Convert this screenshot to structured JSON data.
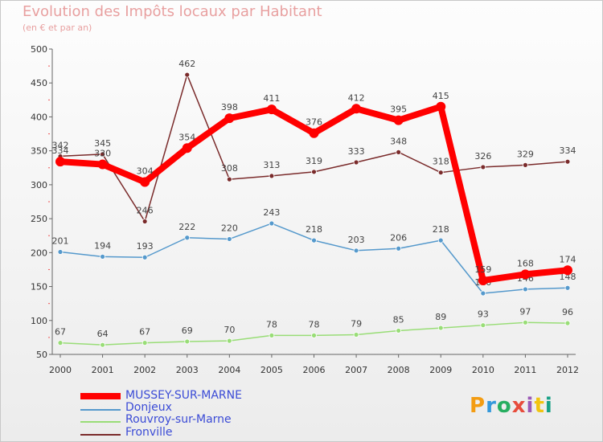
{
  "title": "Evolution des Impôts locaux par Habitant",
  "subtitle": "(en € et par an)",
  "logo": {
    "text": "Proxiti",
    "letter_colors": [
      "#f39c12",
      "#3498db",
      "#27ae60",
      "#e74c3c",
      "#9b59b6",
      "#f1c40f",
      "#16a085"
    ]
  },
  "chart_data": {
    "type": "line",
    "title": "Evolution des Impôts locaux par Habitant",
    "subtitle": "(en € et par an)",
    "xlabel": "",
    "ylabel": "",
    "ylim": [
      50,
      500
    ],
    "yticks": [
      50,
      100,
      150,
      200,
      250,
      300,
      350,
      400,
      450,
      500
    ],
    "x": [
      "2000",
      "2001",
      "2002",
      "2003",
      "2004",
      "2005",
      "2006",
      "2007",
      "2008",
      "2009",
      "2010",
      "2011",
      "2012"
    ],
    "grid": false,
    "legend_position": "bottom-left",
    "series": [
      {
        "name": "Fronville",
        "color": "#7a2b2b",
        "values": [
          342,
          345,
          246,
          462,
          308,
          313,
          319,
          333,
          348,
          318,
          326,
          329,
          334
        ]
      },
      {
        "name": "Rouvroy-sur-Marne",
        "color": "#99dd77",
        "values": [
          67,
          64,
          67,
          69,
          70,
          78,
          78,
          79,
          85,
          89,
          93,
          97,
          96
        ]
      },
      {
        "name": "Donjeux",
        "color": "#5599cc",
        "values": [
          201,
          194,
          193,
          222,
          220,
          243,
          218,
          203,
          206,
          218,
          140,
          146,
          148
        ]
      },
      {
        "name": "MUSSEY-SUR-MARNE",
        "color": "#ff0000",
        "values": [
          334,
          330,
          304,
          354,
          398,
          411,
          376,
          412,
          395,
          415,
          159,
          168,
          174
        ]
      }
    ],
    "legend": [
      "MUSSEY-SUR-MARNE",
      "Donjeux",
      "Rouvroy-sur-Marne",
      "Fronville"
    ]
  }
}
